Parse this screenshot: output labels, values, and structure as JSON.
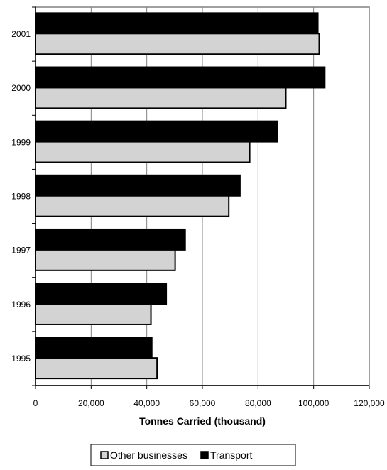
{
  "chart_data": {
    "type": "bar",
    "orientation": "horizontal",
    "categories": [
      "2001",
      "2000",
      "1999",
      "1998",
      "1997",
      "1996",
      "1995"
    ],
    "series": [
      {
        "name": "Transport",
        "color": "#000000",
        "values": [
          101500,
          104000,
          87000,
          73500,
          53800,
          47000,
          41800
        ]
      },
      {
        "name": "Other businesses",
        "color": "#d3d3d3",
        "values": [
          102000,
          90000,
          77000,
          69500,
          50200,
          41500,
          43700
        ]
      }
    ],
    "xlabel": "Tonnes Carried (thousand)",
    "ylabel": "",
    "title": "",
    "xlim": [
      0,
      120000
    ],
    "x_ticks": [
      "0",
      "20,000",
      "40,000",
      "60,000",
      "80,000",
      "100,000",
      "120,000"
    ],
    "grid": "vertical",
    "legend": {
      "position": "bottom-center",
      "order": [
        "Other businesses",
        "Transport"
      ]
    }
  }
}
